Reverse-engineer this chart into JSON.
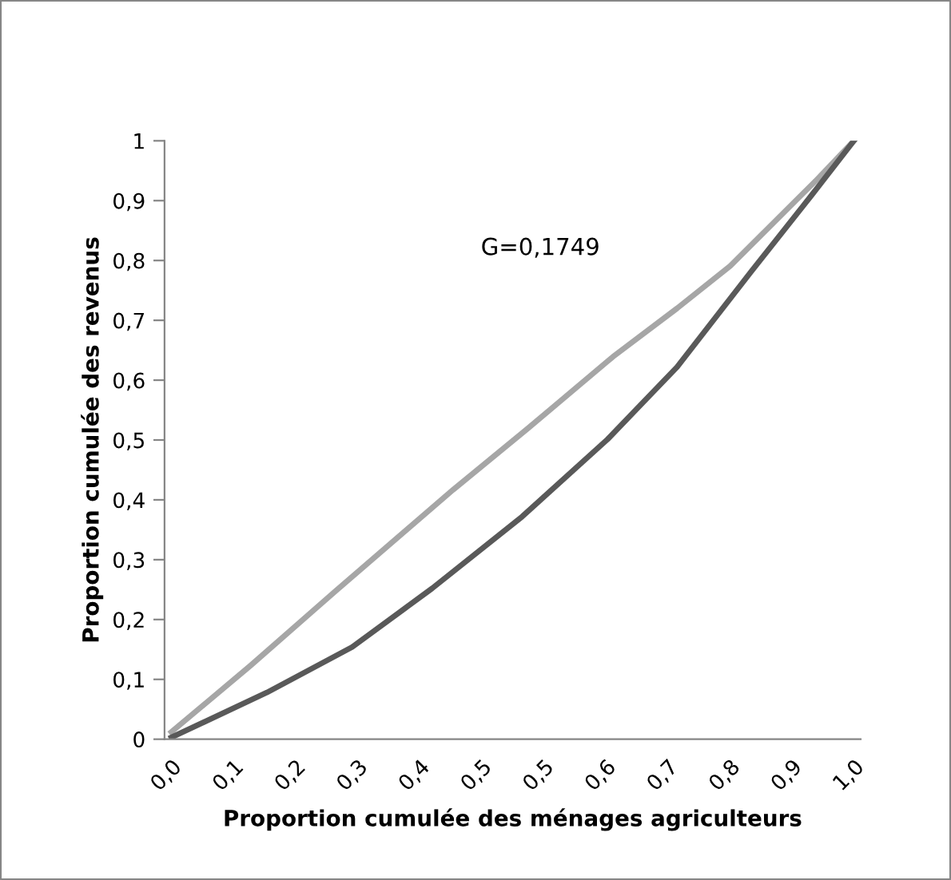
{
  "chart_data": {
    "type": "line",
    "xlabel": "Proportion cumulée des ménages agriculteurs",
    "ylabel": "Proportion cumulée des revenus",
    "annotations": [
      "G=0,1749"
    ],
    "series": [
      {
        "color": "#a6a6a6",
        "x": [
          0,
          0.116,
          0.241,
          0.413,
          0.522,
          0.647,
          0.741,
          0.819,
          0.944,
          1
        ],
        "values": [
          0.012,
          0.123,
          0.248,
          0.417,
          0.519,
          0.639,
          0.72,
          0.791,
          0.933,
          1
        ]
      },
      {
        "color": "#595959",
        "x": [
          0,
          0.14,
          0.265,
          0.382,
          0.514,
          0.639,
          0.741,
          0.85,
          0.936,
          1
        ],
        "values": [
          0.003,
          0.078,
          0.154,
          0.252,
          0.372,
          0.501,
          0.622,
          0.782,
          0.906,
          1
        ]
      }
    ],
    "xlim": [
      -0.01,
      1.01
    ],
    "xticks": [
      {
        "value": 0,
        "label": "0,0"
      },
      {
        "value": 0.0909,
        "label": "0,1"
      },
      {
        "value": 0.1818,
        "label": "0,2"
      },
      {
        "value": 0.2727,
        "label": "0,3"
      },
      {
        "value": 0.3636,
        "label": "0,4"
      },
      {
        "value": 0.4545,
        "label": "0,5"
      },
      {
        "value": 0.5455,
        "label": "0,5"
      },
      {
        "value": 0.6364,
        "label": "0,6"
      },
      {
        "value": 0.7273,
        "label": "0,7"
      },
      {
        "value": 0.8182,
        "label": "0,8"
      },
      {
        "value": 0.9091,
        "label": "0,9"
      },
      {
        "value": 1,
        "label": "1,0"
      }
    ],
    "ylim": [
      0,
      1
    ],
    "yticks": [
      0,
      {
        "value": 0.1,
        "label": "0,1"
      },
      {
        "value": 0.2,
        "label": "0,2"
      },
      {
        "value": 0.3,
        "label": "0,3"
      },
      {
        "value": 0.4,
        "label": "0,4"
      },
      {
        "value": 0.5,
        "label": "0,5"
      },
      {
        "value": 0.6,
        "label": "0,6"
      },
      {
        "value": 0.7,
        "label": "0,7"
      },
      {
        "value": 0.8,
        "label": "0,8"
      },
      {
        "value": 0.9,
        "label": "0,9"
      },
      1
    ],
    "grid": false,
    "legend": false,
    "marker": "none",
    "line_style": "solid"
  }
}
